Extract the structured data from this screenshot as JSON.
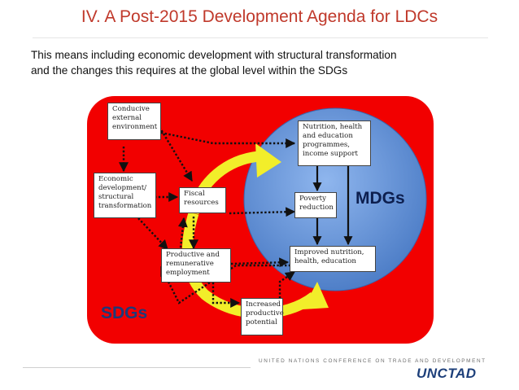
{
  "slide": {
    "title": "IV.  A Post-2015 Development Agenda for LDCs",
    "intro_lines": [
      "This means including economic development with structural transformation",
      "and the changes this requires at the global level within the SDGs"
    ]
  },
  "diagram": {
    "outer_label": "SDGs",
    "inner_label": "MDGs",
    "boxes": {
      "conducive": [
        "Conducive",
        "external",
        "environment"
      ],
      "economic": [
        "Economic",
        "development/",
        "structural",
        "transformation"
      ],
      "fiscal": [
        "Fiscal",
        "resources"
      ],
      "productive": [
        "Productive and",
        "remunerative",
        "employment"
      ],
      "increased": [
        "Increased",
        "productive",
        "potential"
      ],
      "nutrition": [
        "Nutrition, health",
        "and education",
        "programmes,",
        "income support"
      ],
      "poverty": [
        "Poverty",
        "reduction"
      ],
      "improved": [
        "Improved nutrition,",
        "health, education"
      ]
    },
    "colors": {
      "sdg_fill": "#f20000",
      "mdg_fill": "#5d8fd6",
      "cycle_arrow": "#f2ee2a",
      "mdg_label": "#0d1f4f",
      "sdg_label": "#1c3a7a"
    }
  },
  "footer": {
    "org_name": "UNITED NATIONS CONFERENCE ON TRADE AND DEVELOPMENT",
    "logo": "UNCTAD"
  }
}
